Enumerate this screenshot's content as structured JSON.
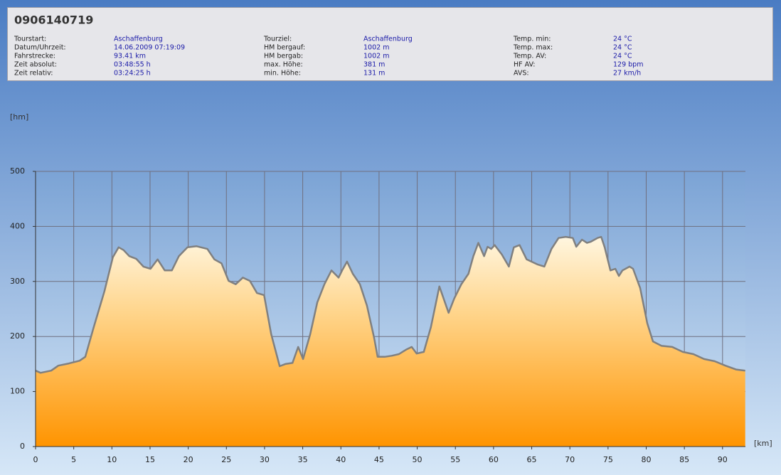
{
  "info": {
    "title": "0906140719",
    "columns": [
      [
        [
          "Tourstart:",
          "Aschaffenburg"
        ],
        [
          "Datum/Uhrzeit:",
          "14.06.2009 07:19:09"
        ],
        [
          "Fahrstrecke:",
          "93.41 km"
        ],
        [
          "Zeit absolut:",
          "03:48:55 h"
        ],
        [
          "Zeit relativ:",
          "03:24:25 h"
        ]
      ],
      [
        [
          "Tourziel:",
          "Aschaffenburg"
        ],
        [
          "HM bergauf:",
          "1002 m"
        ],
        [
          "HM bergab:",
          "1002 m"
        ],
        [
          "max. Höhe:",
          "381 m"
        ],
        [
          "min. Höhe:",
          "131 m"
        ]
      ],
      [
        [
          "Temp. min:",
          "24 °C"
        ],
        [
          "Temp. max:",
          "24 °C"
        ],
        [
          "Temp. AV:",
          "24 °C"
        ],
        [
          "HF AV:",
          "129 bpm"
        ],
        [
          "AVS:",
          "27 km/h"
        ]
      ]
    ]
  },
  "chart_data": {
    "type": "area",
    "x_label": "[km]",
    "y_label": "[hm]",
    "x": [
      0,
      0.65,
      2.05,
      2.98,
      4.37,
      5.76,
      6.51,
      7.62,
      9.02,
      10.13,
      10.88,
      11.53,
      12.27,
      13.2,
      14.13,
      15.06,
      15.99,
      16.92,
      17.85,
      18.78,
      19.9,
      21.1,
      22.5,
      23.43,
      24.36,
      25.29,
      26.22,
      27.15,
      28.08,
      29.01,
      29.94,
      30.87,
      31.98,
      32.73,
      33.66,
      34.4,
      35.05,
      35.98,
      36.91,
      37.84,
      38.77,
      39.7,
      40.16,
      40.81,
      41.56,
      42.49,
      43.42,
      44.35,
      44.81,
      45.74,
      46.67,
      47.6,
      48.53,
      49.28,
      49.93,
      50.86,
      51.79,
      52.9,
      54.11,
      54.85,
      55.78,
      56.71,
      57.36,
      58.01,
      58.76,
      59.22,
      59.69,
      60.15,
      61.08,
      62.01,
      62.66,
      63.41,
      64.34,
      65.73,
      66.66,
      67.59,
      68.52,
      69.45,
      70.38,
      70.84,
      71.59,
      72.24,
      72.7,
      73.63,
      74.1,
      74.56,
      75.31,
      75.96,
      76.42,
      76.89,
      77.82,
      78.28,
      79.21,
      80.14,
      80.89,
      82.01,
      83.4,
      84.79,
      86.18,
      87.58,
      88.97,
      90.37,
      91.76,
      92.97
    ],
    "values": [
      138,
      134,
      138,
      147,
      151,
      156,
      163,
      217,
      282,
      344,
      362,
      357,
      346,
      341,
      327,
      323,
      340,
      320,
      320,
      346,
      362,
      364,
      359,
      340,
      333,
      301,
      295,
      307,
      301,
      279,
      275,
      204,
      146,
      150,
      152,
      181,
      159,
      204,
      262,
      295,
      320,
      307,
      320,
      336,
      314,
      295,
      256,
      198,
      163,
      163,
      165,
      168,
      176,
      181,
      169,
      172,
      217,
      291,
      243,
      269,
      295,
      314,
      346,
      370,
      346,
      363,
      359,
      366,
      349,
      327,
      362,
      366,
      340,
      331,
      327,
      359,
      379,
      381,
      379,
      363,
      376,
      370,
      372,
      379,
      381,
      362,
      320,
      323,
      310,
      320,
      327,
      323,
      288,
      224,
      191,
      183,
      181,
      172,
      168,
      159,
      155,
      147,
      140,
      138
    ],
    "xlim": [
      0,
      93
    ],
    "ylim": [
      0,
      500
    ],
    "xticks": [
      0,
      5,
      10,
      15,
      20,
      25,
      30,
      35,
      40,
      45,
      50,
      55,
      60,
      65,
      70,
      75,
      80,
      85,
      90
    ],
    "yticks": [
      0,
      100,
      200,
      300,
      400,
      500
    ],
    "grid": true,
    "color": "#808080"
  }
}
